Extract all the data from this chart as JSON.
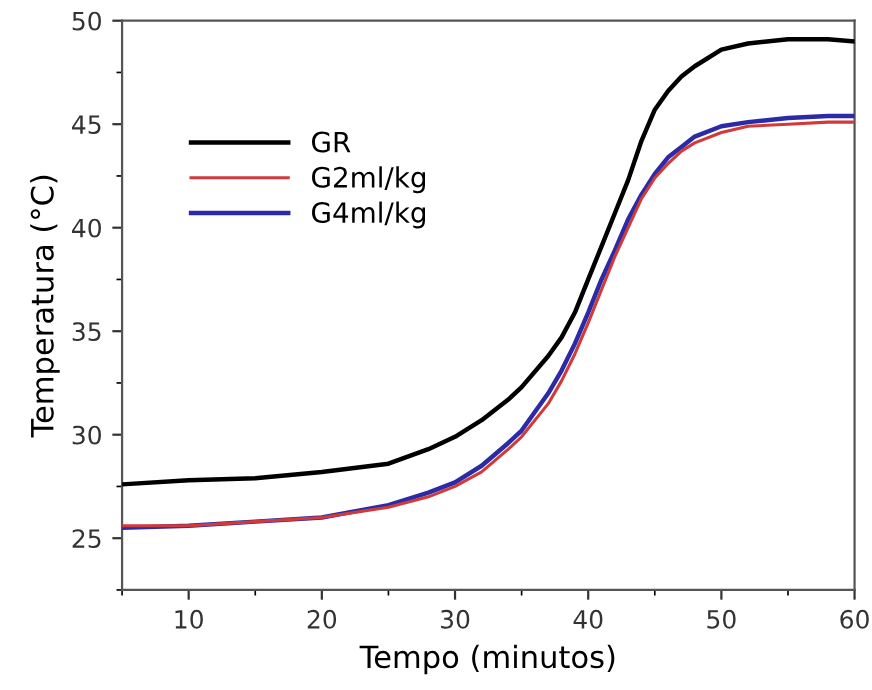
{
  "chart_data": {
    "type": "line",
    "xlabel": "Tempo (minutos)",
    "ylabel": "Temperatura (°C)",
    "xlim": [
      5,
      60
    ],
    "xticks": [
      10,
      20,
      30,
      40,
      50,
      60
    ],
    "ylim": [
      22.5,
      50
    ],
    "yticks": [
      25,
      30,
      35,
      40,
      45,
      50
    ],
    "grid": false,
    "legend": "top left",
    "marker": "none",
    "line_style": "solid",
    "x": [
      5,
      10,
      15,
      20,
      25,
      28,
      30,
      32,
      34,
      35,
      37,
      38,
      39,
      40,
      41,
      42,
      43,
      44,
      45,
      46,
      47,
      48,
      50,
      52,
      55,
      58,
      60
    ],
    "series": [
      {
        "name": "GR",
        "color": "#000000",
        "values": [
          27.6,
          27.8,
          27.9,
          28.2,
          28.6,
          29.3,
          29.9,
          30.7,
          31.7,
          32.3,
          33.8,
          34.7,
          35.9,
          37.5,
          39.1,
          40.7,
          42.3,
          44.2,
          45.7,
          46.6,
          47.3,
          47.8,
          48.6,
          48.9,
          49.1,
          49.1,
          49.0
        ]
      },
      {
        "name": "G2ml/kg",
        "color": "#d03a3a",
        "values": [
          25.6,
          25.6,
          25.8,
          26.0,
          26.5,
          27.0,
          27.5,
          28.2,
          29.3,
          29.9,
          31.5,
          32.6,
          33.9,
          35.4,
          37.0,
          38.6,
          40.0,
          41.4,
          42.4,
          43.1,
          43.7,
          44.1,
          44.6,
          44.9,
          45.0,
          45.1,
          45.1
        ]
      },
      {
        "name": "G4ml/kg",
        "color": "#2b2ba8",
        "values": [
          25.5,
          25.6,
          25.8,
          26.0,
          26.6,
          27.2,
          27.7,
          28.5,
          29.6,
          30.2,
          32.0,
          33.1,
          34.4,
          35.9,
          37.5,
          38.9,
          40.4,
          41.6,
          42.6,
          43.4,
          43.9,
          44.4,
          44.9,
          45.1,
          45.3,
          45.4,
          45.4
        ]
      }
    ]
  }
}
